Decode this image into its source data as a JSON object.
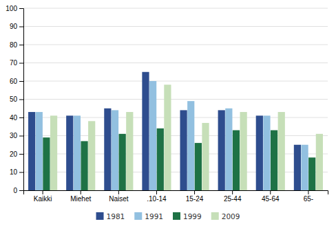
{
  "chart_data": {
    "type": "bar",
    "categories": [
      "Kaikki",
      "Miehet",
      "Naiset",
      ".10-14",
      "15-24",
      "25-44",
      "45-64",
      "65-"
    ],
    "series": [
      {
        "name": "1981",
        "color": "#2E4D8E",
        "values": [
          43,
          41,
          45,
          65,
          44,
          44,
          41,
          25
        ]
      },
      {
        "name": "1991",
        "color": "#92C0E0",
        "values": [
          43,
          41,
          44,
          60,
          49,
          45,
          41,
          25
        ]
      },
      {
        "name": "1999",
        "color": "#1E7245",
        "values": [
          29,
          27,
          31,
          34,
          26,
          33,
          33,
          18
        ]
      },
      {
        "name": "2009",
        "color": "#C6DFB8",
        "values": [
          41,
          38,
          43,
          58,
          37,
          43,
          43,
          31
        ]
      }
    ],
    "ylim": [
      0,
      100
    ],
    "yticks": [
      0,
      10,
      20,
      30,
      40,
      50,
      60,
      70,
      80,
      90,
      100
    ],
    "grid": true,
    "legend": "bottom"
  }
}
